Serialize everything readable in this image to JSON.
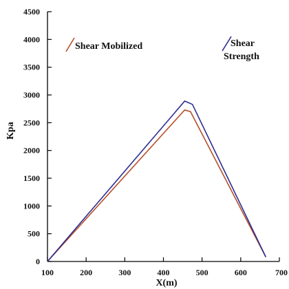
{
  "chart_data": {
    "type": "line",
    "xlabel": "X(m)",
    "ylabel": "Kpa",
    "xlim": [
      100,
      700
    ],
    "ylim": [
      0,
      4500
    ],
    "xticks": [
      100,
      200,
      300,
      400,
      500,
      600,
      700
    ],
    "yticks": [
      0,
      500,
      1000,
      1500,
      2000,
      2500,
      3000,
      3500,
      4000,
      4500
    ],
    "grid": false,
    "series": [
      {
        "name": "Shear Mobilized",
        "color": "#b5502a",
        "x": [
          100,
          455,
          470,
          665
        ],
        "y": [
          0,
          2730,
          2700,
          80
        ]
      },
      {
        "name": "Shear Strength",
        "color": "#2b2b8f",
        "x": [
          100,
          455,
          475,
          665
        ],
        "y": [
          0,
          2890,
          2830,
          80
        ]
      }
    ],
    "legend": [
      {
        "label": "Shear Mobilized",
        "lines": [
          "Shear Mobilized"
        ],
        "color": "#b5502a",
        "placement": "upper-left"
      },
      {
        "label": "Shear Strength",
        "lines": [
          "Shear",
          "Strength"
        ],
        "color": "#2b2b8f",
        "placement": "upper-right"
      }
    ]
  }
}
